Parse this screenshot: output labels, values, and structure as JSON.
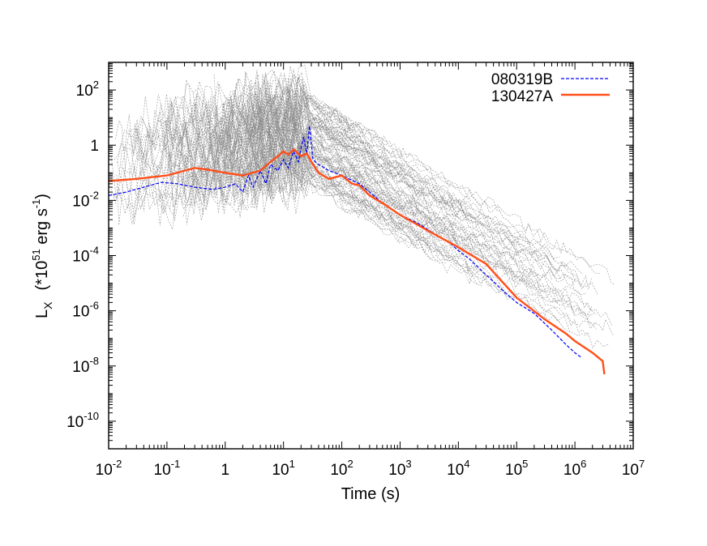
{
  "chart_data": {
    "type": "line",
    "xlabel": "Time   (s)",
    "ylabel_main": "L",
    "ylabel_sub": "X",
    "ylabel_unit_pre": "(*10",
    "ylabel_unit_exp": "51",
    "ylabel_unit_mid": " erg s",
    "ylabel_unit_exp2": "-1",
    "ylabel_unit_post": ")",
    "x_scale": "log",
    "y_scale": "log",
    "xlim": [
      0.01,
      10000000
    ],
    "ylim": [
      1e-11,
      1000
    ],
    "x_ticks": [
      {
        "value": 0.01,
        "base": "10",
        "exp": "-2"
      },
      {
        "value": 0.1,
        "base": "10",
        "exp": "-1"
      },
      {
        "value": 1,
        "base": "1",
        "exp": ""
      },
      {
        "value": 10,
        "base": "10",
        "exp": "1"
      },
      {
        "value": 100,
        "base": "10",
        "exp": "2"
      },
      {
        "value": 1000,
        "base": "10",
        "exp": "3"
      },
      {
        "value": 10000,
        "base": "10",
        "exp": "4"
      },
      {
        "value": 100000,
        "base": "10",
        "exp": "5"
      },
      {
        "value": 1000000,
        "base": "10",
        "exp": "6"
      },
      {
        "value": 10000000,
        "base": "10",
        "exp": "7"
      }
    ],
    "y_ticks": [
      {
        "value": 100,
        "base": "10",
        "exp": "2"
      },
      {
        "value": 1,
        "base": "1",
        "exp": ""
      },
      {
        "value": 0.01,
        "base": "10",
        "exp": "-2"
      },
      {
        "value": 0.0001,
        "base": "10",
        "exp": "-4"
      },
      {
        "value": 1e-06,
        "base": "10",
        "exp": "-6"
      },
      {
        "value": 1e-08,
        "base": "10",
        "exp": "-8"
      },
      {
        "value": 1e-10,
        "base": "10",
        "exp": "-10"
      }
    ],
    "legend_position": "top-right",
    "grid": false,
    "series": [
      {
        "name": "080319B",
        "color": "#0000ff",
        "dash": "dashed",
        "points": [
          [
            0.01,
            0.015
          ],
          [
            0.02,
            0.02
          ],
          [
            0.04,
            0.03
          ],
          [
            0.08,
            0.045
          ],
          [
            0.15,
            0.04
          ],
          [
            0.3,
            0.03
          ],
          [
            0.6,
            0.025
          ],
          [
            1.0,
            0.03
          ],
          [
            1.5,
            0.04
          ],
          [
            2.0,
            0.02
          ],
          [
            2.5,
            0.08
          ],
          [
            3.0,
            0.03
          ],
          [
            4.0,
            0.12
          ],
          [
            5.0,
            0.04
          ],
          [
            6.0,
            0.2
          ],
          [
            8.0,
            0.12
          ],
          [
            10.0,
            0.3
          ],
          [
            12.0,
            0.15
          ],
          [
            15.0,
            0.6
          ],
          [
            18.0,
            0.25
          ],
          [
            22.0,
            2.0
          ],
          [
            25.0,
            0.5
          ],
          [
            28.0,
            5.0
          ],
          [
            32.0,
            0.3
          ],
          [
            40.0,
            0.2
          ],
          [
            60.0,
            0.12
          ],
          [
            100.0,
            0.08
          ],
          [
            200.0,
            0.04
          ],
          [
            300.0,
            0.02
          ],
          [
            400.0,
            0.012
          ],
          [
            500.0,
            0.008
          ],
          [
            700.0,
            0.005
          ],
          [
            1000.0,
            0.003
          ],
          [
            2000.0,
            0.0015
          ],
          [
            4000.0,
            0.0006
          ],
          [
            7000.0,
            0.0003
          ],
          [
            10000.0,
            0.00015
          ],
          [
            15000.0,
            8e-05
          ],
          [
            30000.0,
            2e-05
          ],
          [
            60000.0,
            5e-06
          ],
          [
            100000.0,
            2e-06
          ],
          [
            200000.0,
            8e-07
          ],
          [
            400000.0,
            2e-07
          ],
          [
            700000.0,
            6e-08
          ],
          [
            1000000.0,
            3e-08
          ],
          [
            1300000.0,
            2e-08
          ]
        ]
      },
      {
        "name": "130427A",
        "color": "#ff4f1a",
        "dash": "solid",
        "points": [
          [
            0.01,
            0.05
          ],
          [
            0.03,
            0.06
          ],
          [
            0.1,
            0.08
          ],
          [
            0.3,
            0.15
          ],
          [
            0.5,
            0.13
          ],
          [
            1.0,
            0.1
          ],
          [
            2.0,
            0.08
          ],
          [
            4.0,
            0.12
          ],
          [
            6.0,
            0.25
          ],
          [
            8.0,
            0.4
          ],
          [
            10.0,
            0.6
          ],
          [
            12.0,
            0.45
          ],
          [
            15.0,
            0.7
          ],
          [
            20.0,
            0.4
          ],
          [
            25.0,
            0.5
          ],
          [
            30.0,
            0.25
          ],
          [
            40.0,
            0.1
          ],
          [
            60.0,
            0.06
          ],
          [
            100.0,
            0.08
          ],
          [
            150.0,
            0.04
          ],
          [
            200.0,
            0.035
          ],
          [
            300.0,
            0.015
          ],
          [
            500.0,
            0.008
          ],
          [
            1000.0,
            0.003
          ],
          [
            3000.0,
            0.0008
          ],
          [
            10000.0,
            0.0002
          ],
          [
            30000.0,
            5e-05
          ],
          [
            100000.0,
            3e-06
          ],
          [
            300000.0,
            5e-07
          ],
          [
            700000.0,
            1.5e-07
          ],
          [
            1000000.0,
            8e-08
          ],
          [
            2000000.0,
            3e-08
          ],
          [
            3000000.0,
            1.5e-08
          ],
          [
            3200000.0,
            5e-09
          ]
        ]
      }
    ]
  }
}
